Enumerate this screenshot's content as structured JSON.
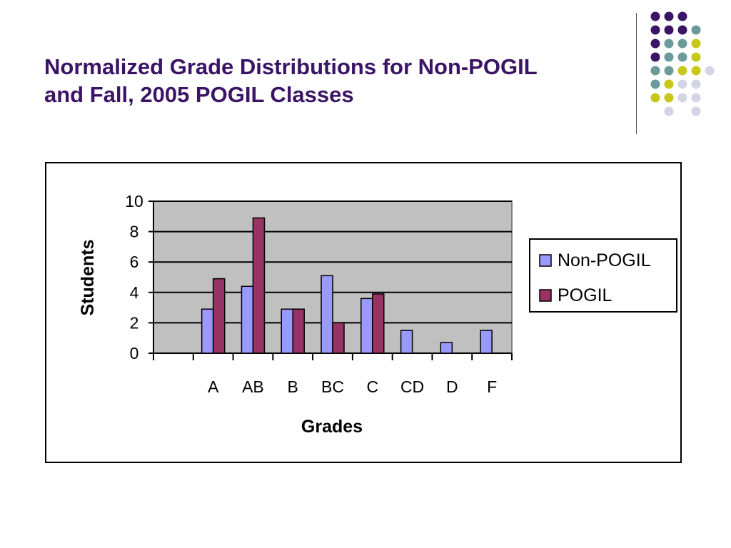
{
  "slide": {
    "title_line1": "Normalized Grade Distributions for Non-POGIL",
    "title_line2": "and Fall, 2005 POGIL Classes",
    "title_color": "#3b1466"
  },
  "decoration": {
    "dot_colors": {
      "purple": "#3b1466",
      "teal": "#6a9a9a",
      "olive": "#c8c81a",
      "lavender": "#d4d4e6"
    }
  },
  "chart_data": {
    "type": "bar",
    "title": "",
    "xlabel": "Grades",
    "ylabel": "Students",
    "categories": [
      "",
      "A",
      "AB",
      "B",
      "BC",
      "C",
      "CD",
      "D",
      "F"
    ],
    "series": [
      {
        "name": "Non-POGIL",
        "color": "#9999ff",
        "values": [
          null,
          2.9,
          4.4,
          2.9,
          5.1,
          3.6,
          1.5,
          0.7,
          1.5
        ]
      },
      {
        "name": "POGIL",
        "color": "#993366",
        "values": [
          null,
          4.9,
          8.9,
          2.9,
          2.0,
          3.9,
          null,
          null,
          null
        ]
      }
    ],
    "ylim": [
      0,
      10
    ],
    "yticks": [
      0,
      2,
      4,
      6,
      8,
      10
    ],
    "grid": true,
    "plot_background": "#c0c0c0",
    "legend_position": "right"
  }
}
